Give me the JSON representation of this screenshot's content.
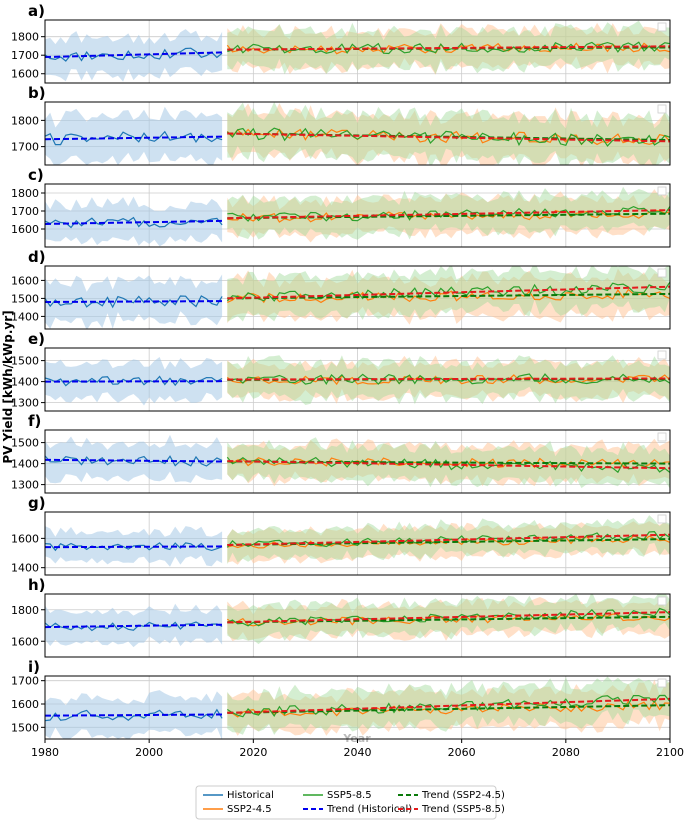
{
  "figure": {
    "ylabel": "PV Yield [kWh/kWp.yr]",
    "xlabel": "Year",
    "xlim": [
      1980,
      2100
    ],
    "xticks": [
      1980,
      2000,
      2020,
      2040,
      2060,
      2080,
      2100
    ],
    "historical_end": 2014,
    "colors": {
      "historical": "#1f77b4",
      "historical_band": "#a6c8e6",
      "ssp245": "#ff7f0e",
      "ssp245_band": "#ffc79a",
      "ssp585": "#2ca02c",
      "ssp585_band": "#9fd99a",
      "trend_hist": "#0000ee",
      "trend_245": "#0a7a0a",
      "trend_585": "#e41a1c",
      "grid": "#cccccc"
    }
  },
  "legend": {
    "entries": [
      {
        "label": "Historical",
        "style": "historical"
      },
      {
        "label": "SSP2-4.5",
        "style": "ssp245"
      },
      {
        "label": "SSP5-8.5",
        "style": "ssp585"
      },
      {
        "label": "Trend (Historical)",
        "style": "trend_hist"
      },
      {
        "label": "Trend (SSP2-4.5)",
        "style": "trend_245"
      },
      {
        "label": "Trend (SSP5-8.5)",
        "style": "trend_585"
      }
    ]
  },
  "chart_data": [
    {
      "label": "a)",
      "type": "line",
      "ylim": [
        1550,
        1890
      ],
      "yticks": [
        1600,
        1700,
        1800
      ],
      "hist_mean": 1705,
      "band": 100,
      "hist_trend": [
        1690,
        1715
      ],
      "ssp245_trend": [
        1730,
        1742
      ],
      "ssp585_trend": [
        1730,
        1748
      ]
    },
    {
      "label": "b)",
      "type": "line",
      "ylim": [
        1630,
        1870
      ],
      "yticks": [
        1700,
        1800
      ],
      "hist_mean": 1735,
      "band": 85,
      "hist_trend": [
        1728,
        1738
      ],
      "ssp245_trend": [
        1750,
        1725
      ],
      "ssp585_trend": [
        1750,
        1720
      ]
    },
    {
      "label": "c)",
      "type": "line",
      "ylim": [
        1500,
        1850
      ],
      "yticks": [
        1600,
        1700,
        1800
      ],
      "hist_mean": 1635,
      "band": 100,
      "hist_trend": [
        1628,
        1645
      ],
      "ssp245_trend": [
        1660,
        1685
      ],
      "ssp585_trend": [
        1660,
        1705
      ]
    },
    {
      "label": "d)",
      "type": "line",
      "ylim": [
        1330,
        1680
      ],
      "yticks": [
        1400,
        1500,
        1600
      ],
      "hist_mean": 1485,
      "band": 110,
      "hist_trend": [
        1480,
        1485
      ],
      "ssp245_trend": [
        1500,
        1525
      ],
      "ssp585_trend": [
        1500,
        1565
      ]
    },
    {
      "label": "e)",
      "type": "line",
      "ylim": [
        1260,
        1560
      ],
      "yticks": [
        1300,
        1400,
        1500
      ],
      "hist_mean": 1400,
      "band": 85,
      "hist_trend": [
        1400,
        1402
      ],
      "ssp245_trend": [
        1408,
        1412
      ],
      "ssp585_trend": [
        1410,
        1415
      ]
    },
    {
      "label": "f)",
      "type": "line",
      "ylim": [
        1260,
        1560
      ],
      "yticks": [
        1300,
        1400,
        1500
      ],
      "hist_mean": 1415,
      "band": 85,
      "hist_trend": [
        1418,
        1410
      ],
      "ssp245_trend": [
        1410,
        1400
      ],
      "ssp585_trend": [
        1412,
        1378
      ]
    },
    {
      "label": "g)",
      "type": "line",
      "ylim": [
        1350,
        1780
      ],
      "yticks": [
        1400,
        1600
      ],
      "hist_mean": 1545,
      "band": 100,
      "hist_trend": [
        1540,
        1545
      ],
      "ssp245_trend": [
        1555,
        1595
      ],
      "ssp585_trend": [
        1555,
        1625
      ]
    },
    {
      "label": "h)",
      "type": "line",
      "ylim": [
        1500,
        1900
      ],
      "yticks": [
        1600,
        1800
      ],
      "hist_mean": 1695,
      "band": 100,
      "hist_trend": [
        1690,
        1705
      ],
      "ssp245_trend": [
        1720,
        1755
      ],
      "ssp585_trend": [
        1720,
        1785
      ]
    },
    {
      "label": "i)",
      "type": "line",
      "ylim": [
        1450,
        1720
      ],
      "yticks": [
        1500,
        1600,
        1700
      ],
      "hist_mean": 1555,
      "band": 80,
      "hist_trend": [
        1550,
        1555
      ],
      "ssp245_trend": [
        1562,
        1595
      ],
      "ssp585_trend": [
        1562,
        1622
      ]
    }
  ]
}
